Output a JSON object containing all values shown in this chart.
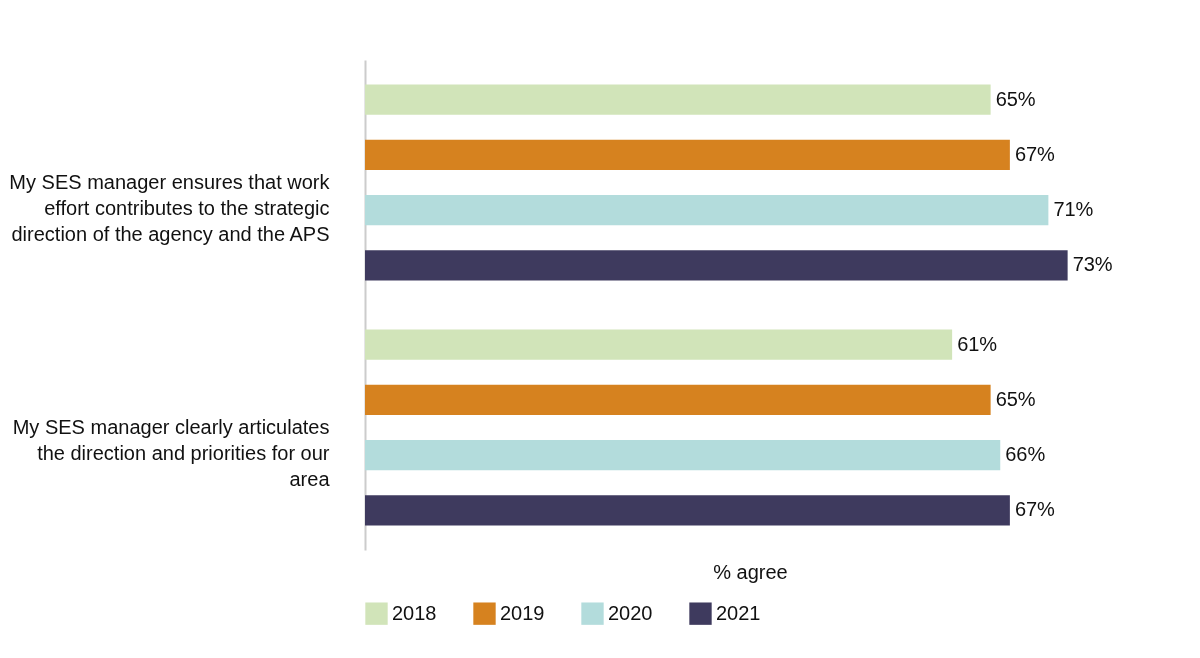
{
  "chart_data": {
    "type": "bar",
    "orientation": "horizontal",
    "xlabel": "% agree",
    "categories": [
      "My SES manager ensures that work effort contributes to the strategic direction of the agency and the APS",
      "My SES manager clearly articulates the direction and priorities for our area"
    ],
    "series": [
      {
        "name": "2018",
        "color": "#d1e4b9",
        "values": [
          65,
          61
        ],
        "value_labels": [
          "65%",
          "61%"
        ]
      },
      {
        "name": "2019",
        "color": "#d6821f",
        "values": [
          67,
          65
        ],
        "value_labels": [
          "67%",
          "65%"
        ]
      },
      {
        "name": "2020",
        "color": "#b3dcdc",
        "values": [
          71,
          66
        ],
        "value_labels": [
          "71%",
          "66%"
        ]
      },
      {
        "name": "2021",
        "color": "#3e3a5e",
        "values": [
          73,
          67
        ],
        "value_labels": [
          "73%",
          "67%"
        ]
      }
    ],
    "legend": "bottom"
  }
}
